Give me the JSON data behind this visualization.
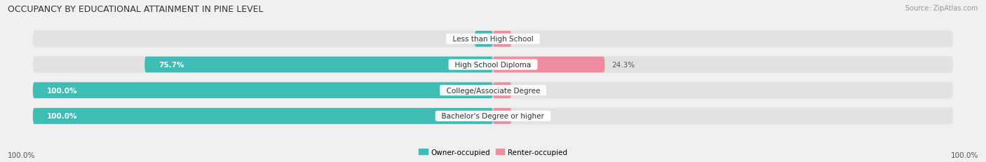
{
  "title": "OCCUPANCY BY EDUCATIONAL ATTAINMENT IN PINE LEVEL",
  "source": "Source: ZipAtlas.com",
  "categories": [
    "Less than High School",
    "High School Diploma",
    "College/Associate Degree",
    "Bachelor's Degree or higher"
  ],
  "owner_values": [
    0.0,
    75.7,
    100.0,
    100.0
  ],
  "renter_values": [
    0.0,
    24.3,
    0.0,
    0.0
  ],
  "owner_color": "#3dbdb5",
  "renter_color": "#f08ca0",
  "bar_bg_color": "#e2e2e2",
  "row_bg_color": "#ebebeb",
  "owner_label": "Owner-occupied",
  "renter_label": "Renter-occupied",
  "axis_left_label": "100.0%",
  "axis_right_label": "100.0%",
  "figsize": [
    14.06,
    2.32
  ],
  "dpi": 100,
  "bar_height": 0.62,
  "title_fontsize": 9,
  "source_fontsize": 7,
  "label_fontsize": 7.5,
  "category_fontsize": 7.5,
  "stub_size": 4.0
}
